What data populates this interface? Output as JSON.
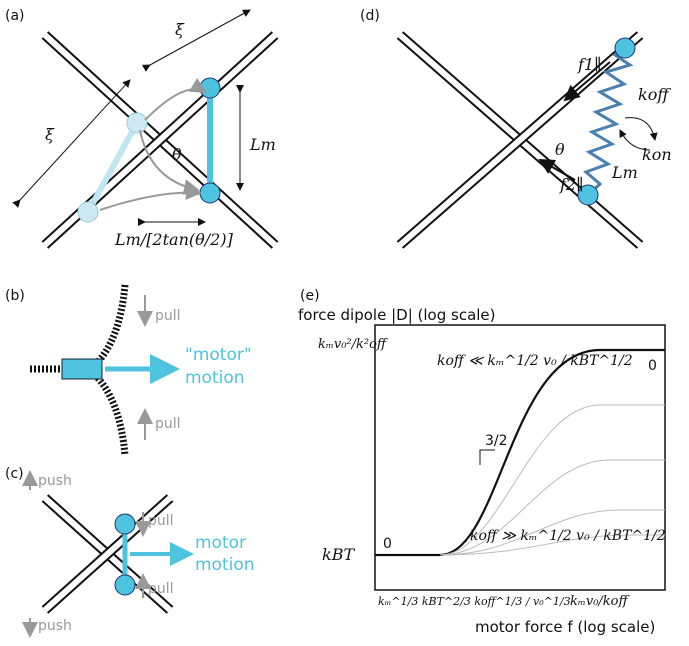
{
  "panel_a": {
    "label": "(a)",
    "xi_top": "ξ",
    "xi_left": "ξ",
    "theta": "θ",
    "lm": "Lm",
    "lm_offset": "Lm/[2tan(θ/2)]"
  },
  "panel_b": {
    "label": "(b)",
    "pull_top": "pull",
    "pull_bottom": "pull",
    "motion_line1": "\"motor\"",
    "motion_line2": "motion"
  },
  "panel_c": {
    "label": "(c)",
    "push_top": "push",
    "pull_top": "pull",
    "pull_bottom": "pull",
    "push_bottom": "push",
    "motion_line1": "motor",
    "motion_line2": "motion"
  },
  "panel_d": {
    "label": "(d)",
    "f1": "f1∥",
    "f2": "f2∥",
    "koff": "koff",
    "kon": "kon",
    "lm": "Lm",
    "theta": "θ"
  },
  "panel_e": {
    "label": "(e)",
    "y_axis_label": "force dipole |D| (log scale)",
    "x_axis_label": "motor force f (log scale)",
    "y_tick_top": "kₘv₀²/k²off",
    "y_tick_bottom": "kBT",
    "x_tick_left": "kₘ^1/3 kBT^2/3 koff^1/3 / v₀^1/3",
    "x_tick_right": "kₘv₀/koff",
    "regime_top": "koff ≪ kₘ^1/2 v₀ / kBT^1/2",
    "regime_bottom": "koff ≫ kₘ^1/2 v₀ / kBT^1/2",
    "slope_left": "0",
    "slope_mid": "3/2",
    "slope_right": "0"
  }
}
